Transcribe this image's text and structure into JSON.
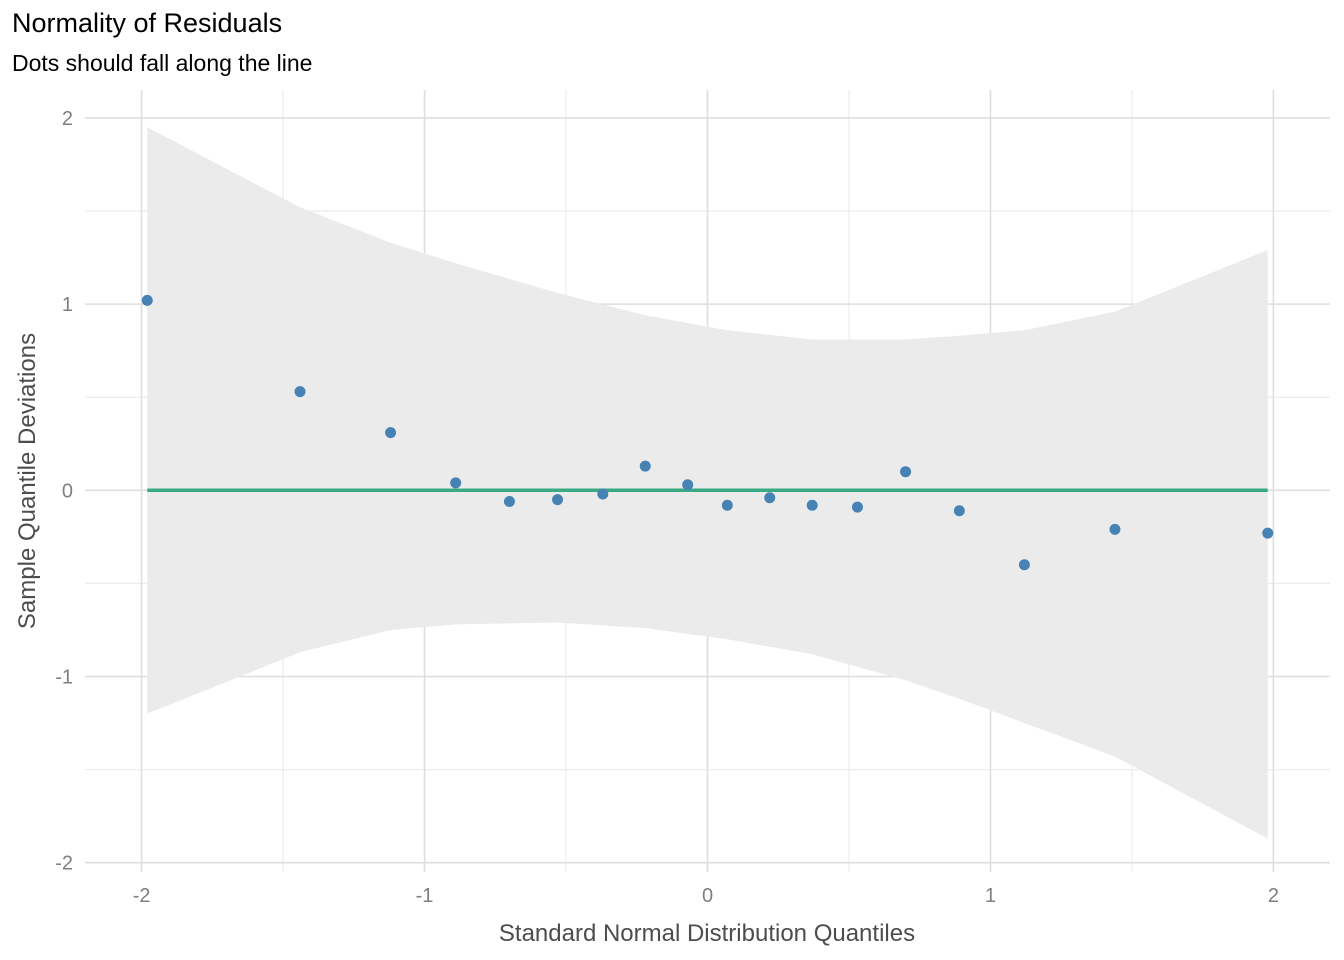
{
  "chart_data": {
    "type": "scatter",
    "title": "Normality of Residuals",
    "subtitle": "Dots should fall along the line",
    "xlabel": "Standard Normal Distribution Quantiles",
    "ylabel": "Sample Quantile Deviations",
    "xlim": [
      -2.2,
      2.2
    ],
    "ylim": [
      -2.05,
      2.15
    ],
    "x_ticks": [
      -2,
      -1,
      0,
      1,
      2
    ],
    "x_tick_labels": [
      "-2",
      "-1",
      "0",
      "1",
      "2"
    ],
    "y_ticks": [
      -2,
      -1,
      0,
      1,
      2
    ],
    "y_tick_labels": [
      "-2",
      "-1",
      "0",
      "1",
      "2"
    ],
    "grid": true,
    "points": {
      "x": [
        -1.98,
        -1.44,
        -1.12,
        -0.89,
        -0.7,
        -0.53,
        -0.37,
        -0.22,
        -0.07,
        0.07,
        0.22,
        0.37,
        0.53,
        0.7,
        0.89,
        1.12,
        1.44,
        1.98
      ],
      "y": [
        1.02,
        0.53,
        0.31,
        0.04,
        -0.06,
        -0.05,
        -0.02,
        0.13,
        0.03,
        -0.08,
        -0.04,
        -0.08,
        -0.09,
        0.1,
        -0.11,
        -0.4,
        -0.21,
        -0.23
      ],
      "color": "#4682B4"
    },
    "reference_line": {
      "x": [
        -1.98,
        1.98
      ],
      "y": [
        0,
        0
      ],
      "color": "#3AAA85"
    },
    "confidence_band": {
      "color": "#EBEBEB",
      "x": [
        -1.98,
        -1.44,
        -1.12,
        -0.89,
        -0.53,
        -0.22,
        0.07,
        0.37,
        0.7,
        0.89,
        1.12,
        1.44,
        1.98
      ],
      "upper": [
        1.95,
        1.52,
        1.33,
        1.22,
        1.06,
        0.94,
        0.86,
        0.81,
        0.81,
        0.83,
        0.86,
        0.96,
        1.29
      ],
      "lower": [
        -1.2,
        -0.87,
        -0.75,
        -0.72,
        -0.71,
        -0.74,
        -0.8,
        -0.88,
        -1.02,
        -1.12,
        -1.25,
        -1.43,
        -1.87
      ]
    }
  }
}
